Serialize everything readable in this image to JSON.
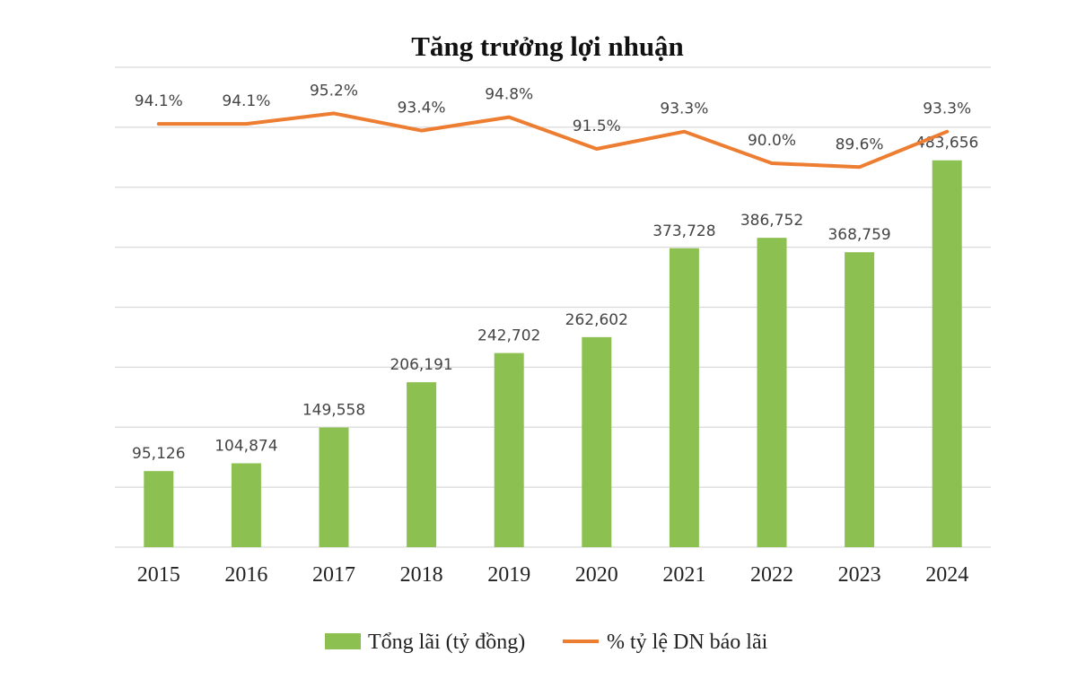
{
  "chart_data": {
    "type": "bar+line",
    "title": "Tăng trưởng lợi nhuận",
    "categories": [
      "2015",
      "2016",
      "2017",
      "2018",
      "2019",
      "2020",
      "2021",
      "2022",
      "2023",
      "2024"
    ],
    "series": [
      {
        "name": "Tổng lãi (tỷ đồng)",
        "type": "bar",
        "color": "#8cc152",
        "values": [
          95126,
          104874,
          149558,
          206191,
          242702,
          262602,
          373728,
          386752,
          368759,
          483656
        ],
        "labels": [
          "95,126",
          "104,874",
          "149,558",
          "206,191",
          "242,702",
          "262,602",
          "373,728",
          "386,752",
          "368,759",
          "483,656"
        ]
      },
      {
        "name": "% tỷ lệ DN báo lãi",
        "type": "line",
        "color": "#ed7d31",
        "values": [
          94.1,
          94.1,
          95.2,
          93.4,
          94.8,
          91.5,
          93.3,
          90.0,
          89.6,
          93.3
        ],
        "labels": [
          "94.1%",
          "94.1%",
          "95.2%",
          "93.4%",
          "94.8%",
          "91.5%",
          "93.3%",
          "90.0%",
          "89.6%",
          "93.3%"
        ]
      }
    ],
    "ylim": [
      0,
      600000
    ],
    "y2lim": [
      50,
      100
    ],
    "grid": true,
    "legend": "bottom-center"
  }
}
